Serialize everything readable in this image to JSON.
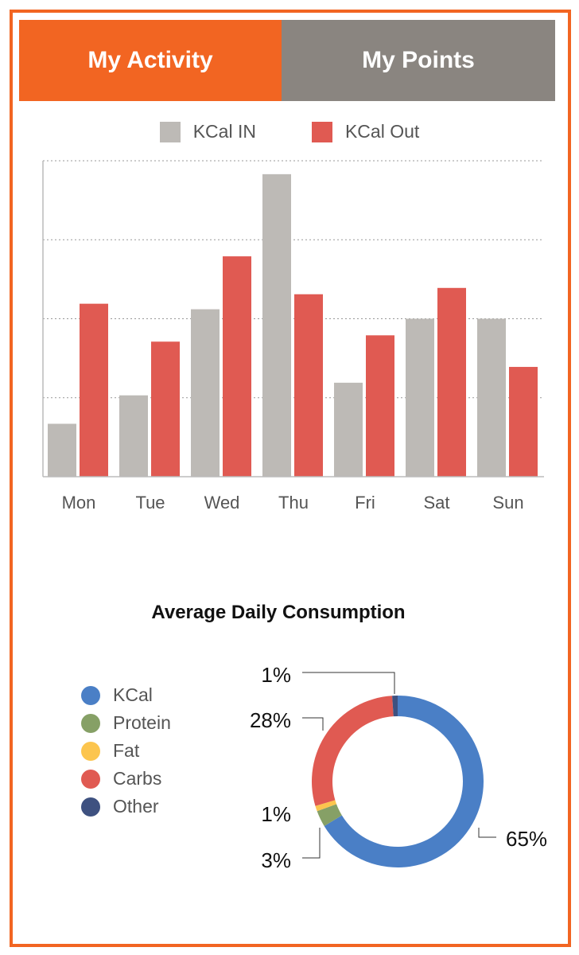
{
  "tabs": [
    {
      "label": "My Activity",
      "active": true,
      "color": "#f26522"
    },
    {
      "label": "My Points",
      "active": false,
      "color": "#8a8580"
    }
  ],
  "colors": {
    "accent": "#f26522",
    "kcal_in": "#bdbab6",
    "kcal_out": "#e05a52"
  },
  "chart_data": [
    {
      "type": "bar",
      "categories": [
        "Mon",
        "Tue",
        "Wed",
        "Thu",
        "Fri",
        "Sat",
        "Sun"
      ],
      "series": [
        {
          "name": "KCal IN",
          "color": "#bdbab6",
          "values": [
            0.67,
            1.03,
            2.12,
            3.83,
            1.19,
            2.0,
            2.0
          ]
        },
        {
          "name": "KCal Out",
          "color": "#e05a52",
          "values": [
            2.19,
            1.71,
            2.79,
            2.31,
            1.79,
            2.39,
            1.39
          ]
        }
      ],
      "ylim": [
        0,
        4
      ],
      "grid": true,
      "legend": "top-center",
      "title": "",
      "xlabel": "",
      "ylabel": ""
    },
    {
      "type": "pie",
      "style": "donut",
      "title": "Average Daily Consumption",
      "legend": "left",
      "slices": [
        {
          "label": "KCal",
          "value": 65,
          "display": "65%",
          "color": "#4a7fc6"
        },
        {
          "label": "Protein",
          "value": 3,
          "display": "3%",
          "color": "#86a066"
        },
        {
          "label": "Fat",
          "value": 1,
          "display": "1%",
          "color": "#fcc54e"
        },
        {
          "label": "Carbs",
          "value": 28,
          "display": "28%",
          "color": "#e05a52"
        },
        {
          "label": "Other",
          "value": 1,
          "display": "1%",
          "color": "#3e5180"
        }
      ]
    }
  ]
}
